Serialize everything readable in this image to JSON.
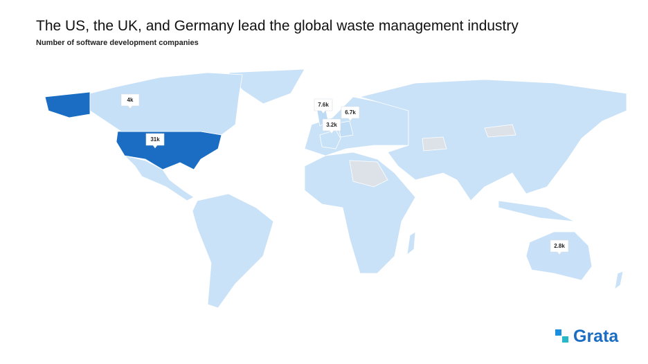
{
  "chart_data": {
    "type": "choropleth",
    "title": "The US, the UK, and Germany lead the global waste management industry",
    "subtitle": "Number of software development companies",
    "values": [
      31000,
      4000,
      7600,
      6700,
      3200,
      2800
    ],
    "value_labels": [
      "31k",
      "4k",
      "7.6k",
      "6.7k",
      "3.2k",
      "2.8k"
    ],
    "scale_colors": [
      "#c9e2f8",
      "#1a6dc2"
    ]
  },
  "brand": {
    "name": "Grata"
  }
}
